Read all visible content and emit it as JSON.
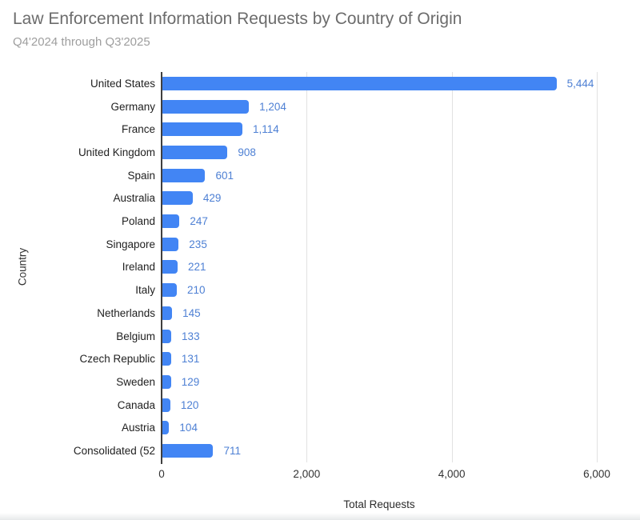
{
  "chart_data": {
    "type": "bar",
    "orientation": "horizontal",
    "title": "Law Enforcement Information Requests by Country of Origin",
    "subtitle": "Q4'2024 through Q3'2025",
    "xlabel": "Total Requests",
    "ylabel": "Country",
    "categories": [
      "United States",
      "Germany",
      "France",
      "United Kingdom",
      "Spain",
      "Australia",
      "Poland",
      "Singapore",
      "Ireland",
      "Italy",
      "Netherlands",
      "Belgium",
      "Czech Republic",
      "Sweden",
      "Canada",
      "Austria",
      "Consolidated (52"
    ],
    "values": [
      5444,
      1204,
      1114,
      908,
      601,
      429,
      247,
      235,
      221,
      210,
      145,
      133,
      131,
      129,
      120,
      104,
      711
    ],
    "value_labels": [
      "5,444",
      "1,204",
      "1,114",
      "908",
      "601",
      "429",
      "247",
      "235",
      "221",
      "210",
      "145",
      "133",
      "131",
      "129",
      "120",
      "104",
      "711"
    ],
    "xlim": [
      0,
      6000
    ],
    "xticks": [
      0,
      2000,
      4000,
      6000
    ],
    "xtick_labels": [
      "0",
      "2,000",
      "4,000",
      "6,000"
    ],
    "grid": "vertical",
    "legend": "none",
    "bar_color": "#4285f4",
    "value_label_color": "#4e80d4",
    "title_color": "#6c6c6c",
    "subtitle_color": "#9e9e9e"
  }
}
